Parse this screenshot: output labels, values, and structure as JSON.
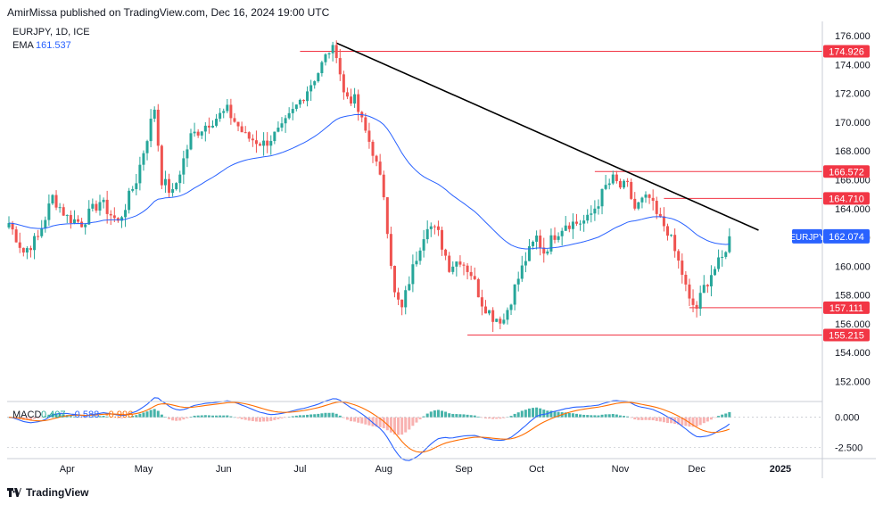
{
  "publisher_line": "AmirMissa published on TradingView.com, Dec 16, 2024 19:00 UTC",
  "footer": {
    "brand": "TradingView",
    "logo_icon": "tradingview-logo-icon"
  },
  "colors": {
    "up": "#26a69a",
    "down": "#ef5350",
    "ema": "#2962ff",
    "macd": "#2962ff",
    "signal": "#ff6d00",
    "hline": "#f23645",
    "trend": "#000000",
    "last": "#2962ff"
  },
  "chart_data": {
    "type": "candlestick",
    "title": "EURJPY, 1D, ICE",
    "indicators": {
      "ema_label": "EMA",
      "ema_value": "161.537"
    },
    "price_axis": {
      "ylim": [
        150.6,
        177.0
      ],
      "ticks": [
        "176.000",
        "174.000",
        "172.000",
        "170.000",
        "168.000",
        "166.000",
        "164.000",
        "162.000",
        "160.000",
        "158.000",
        "156.000",
        "154.000",
        "152.000"
      ]
    },
    "time_axis": {
      "labels": [
        {
          "label": "Apr",
          "t": 16
        },
        {
          "label": "May",
          "t": 37
        },
        {
          "label": "Jun",
          "t": 59
        },
        {
          "label": "Jul",
          "t": 80
        },
        {
          "label": "Aug",
          "t": 103
        },
        {
          "label": "Sep",
          "t": 125
        },
        {
          "label": "Oct",
          "t": 145
        },
        {
          "label": "Nov",
          "t": 168
        },
        {
          "label": "Dec",
          "t": 189
        },
        {
          "label": "2025",
          "t": 212
        }
      ]
    },
    "horizontal_levels": [
      {
        "value": 174.926,
        "label": "174.926",
        "from_t": 80
      },
      {
        "value": 166.572,
        "label": "166.572",
        "from_t": 161
      },
      {
        "value": 164.71,
        "label": "164.710",
        "from_t": 180
      },
      {
        "value": 157.111,
        "label": "157.111",
        "from_t": 187
      },
      {
        "value": 155.215,
        "label": "155.215",
        "from_t": 126
      }
    ],
    "trendline": {
      "from": {
        "t": 90,
        "price": 175.5
      },
      "to": {
        "t": 206,
        "price": 162.5
      }
    },
    "last_price": {
      "symbol": "EURJPY",
      "value": 162.074,
      "label": "162.074"
    },
    "price_path": [
      [
        0,
        163.0
      ],
      [
        4,
        161.0
      ],
      [
        8,
        162.0
      ],
      [
        12,
        164.8
      ],
      [
        16,
        163.4
      ],
      [
        20,
        163.0
      ],
      [
        25,
        164.5
      ],
      [
        30,
        163.0
      ],
      [
        35,
        166.0
      ],
      [
        40,
        171.0
      ],
      [
        42,
        166.0
      ],
      [
        45,
        165.0
      ],
      [
        50,
        169.0
      ],
      [
        55,
        170.0
      ],
      [
        60,
        170.8
      ],
      [
        65,
        169.0
      ],
      [
        70,
        168.5
      ],
      [
        75,
        169.5
      ],
      [
        80,
        171.5
      ],
      [
        85,
        173.5
      ],
      [
        88,
        175.0
      ],
      [
        90,
        174.9
      ],
      [
        92,
        172.0
      ],
      [
        95,
        171.5
      ],
      [
        97,
        170.0
      ],
      [
        100,
        168.0
      ],
      [
        103,
        165.0
      ],
      [
        106,
        158.0
      ],
      [
        108,
        157.0
      ],
      [
        110,
        159.0
      ],
      [
        113,
        161.5
      ],
      [
        115,
        163.0
      ],
      [
        118,
        162.2
      ],
      [
        121,
        160.0
      ],
      [
        124,
        160.5
      ],
      [
        127,
        159.5
      ],
      [
        130,
        157.5
      ],
      [
        133,
        156.5
      ],
      [
        136,
        156.3
      ],
      [
        139,
        158.5
      ],
      [
        142,
        160.5
      ],
      [
        145,
        162.0
      ],
      [
        147,
        161.0
      ],
      [
        150,
        162.2
      ],
      [
        153,
        163.0
      ],
      [
        156,
        163.0
      ],
      [
        159,
        163.2
      ],
      [
        162,
        164.5
      ],
      [
        164,
        165.5
      ],
      [
        166,
        166.0
      ],
      [
        168,
        165.5
      ],
      [
        170,
        165.5
      ],
      [
        172,
        164.0
      ],
      [
        174,
        164.5
      ],
      [
        176,
        164.7
      ],
      [
        178,
        163.5
      ],
      [
        181,
        162.5
      ],
      [
        183,
        161.0
      ],
      [
        185,
        159.5
      ],
      [
        187,
        157.5
      ],
      [
        189,
        157.1
      ],
      [
        191,
        158.5
      ],
      [
        193,
        159.5
      ],
      [
        196,
        160.5
      ],
      [
        198,
        162.074
      ]
    ],
    "macd": {
      "label": "MACD",
      "histogram_value": "0.407",
      "macd_value": "-0.588",
      "signal_value": "-0.996",
      "ylim": [
        -3.4,
        1.3
      ],
      "ticks": [
        "0.000",
        "-2.500"
      ]
    }
  }
}
